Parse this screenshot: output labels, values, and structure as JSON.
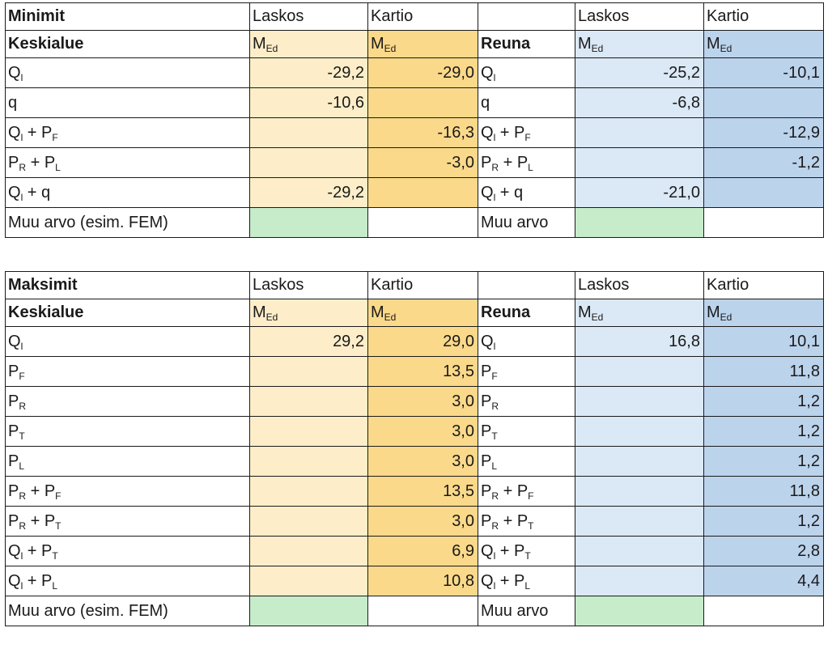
{
  "minimit": {
    "title": "Minimit",
    "section_center": "Keskialue",
    "section_edge": "Reuna",
    "col_laskos": "Laskos",
    "col_kartio": "Kartio",
    "med": {
      "base": "M",
      "sub": "Ed"
    },
    "rows": [
      {
        "l": {
          "b": "Q",
          "s": "l",
          "b2": "",
          "s2": ""
        },
        "cl": "-29,2",
        "ck": "-29,0",
        "r": {
          "b": "Q",
          "s": "l",
          "b2": "",
          "s2": ""
        },
        "el": "-25,2",
        "ek": "-10,1"
      },
      {
        "l": {
          "b": "q",
          "s": "",
          "b2": "",
          "s2": ""
        },
        "cl": "-10,6",
        "ck": "",
        "r": {
          "b": "q",
          "s": "",
          "b2": "",
          "s2": ""
        },
        "el": "-6,8",
        "ek": ""
      },
      {
        "l": {
          "b": "Q",
          "s": "l",
          "b2": "P",
          "s2": "F"
        },
        "cl": "",
        "ck": "-16,3",
        "r": {
          "b": "Q",
          "s": "l",
          "b2": "P",
          "s2": "F"
        },
        "el": "",
        "ek": "-12,9"
      },
      {
        "l": {
          "b": "P",
          "s": "R",
          "b2": "P",
          "s2": "L"
        },
        "cl": "",
        "ck": "-3,0",
        "r": {
          "b": "P",
          "s": "R",
          "b2": "P",
          "s2": "L"
        },
        "el": "",
        "ek": "-1,2"
      },
      {
        "l": {
          "b": "Q",
          "s": "l",
          "b2": "q",
          "s2": ""
        },
        "cl": "-29,2",
        "ck": "",
        "r": {
          "b": "Q",
          "s": "l",
          "b2": "q",
          "s2": ""
        },
        "el": "-21,0",
        "ek": ""
      }
    ],
    "other_center": "Muu arvo (esim. FEM)",
    "other_edge": "Muu arvo"
  },
  "maksimit": {
    "title": "Maksimit",
    "section_center": "Keskialue",
    "section_edge": "Reuna",
    "col_laskos": "Laskos",
    "col_kartio": "Kartio",
    "med": {
      "base": "M",
      "sub": "Ed"
    },
    "rows": [
      {
        "l": {
          "b": "Q",
          "s": "l",
          "b2": "",
          "s2": ""
        },
        "cl": "29,2",
        "ck": "29,0",
        "r": {
          "b": "Q",
          "s": "l",
          "b2": "",
          "s2": ""
        },
        "el": "16,8",
        "ek": "10,1"
      },
      {
        "l": {
          "b": "P",
          "s": "F",
          "b2": "",
          "s2": ""
        },
        "cl": "",
        "ck": "13,5",
        "r": {
          "b": "P",
          "s": "F",
          "b2": "",
          "s2": ""
        },
        "el": "",
        "ek": "11,8"
      },
      {
        "l": {
          "b": "P",
          "s": "R",
          "b2": "",
          "s2": ""
        },
        "cl": "",
        "ck": "3,0",
        "r": {
          "b": "P",
          "s": "R",
          "b2": "",
          "s2": ""
        },
        "el": "",
        "ek": "1,2"
      },
      {
        "l": {
          "b": "P",
          "s": "T",
          "b2": "",
          "s2": ""
        },
        "cl": "",
        "ck": "3,0",
        "r": {
          "b": "P",
          "s": "T",
          "b2": "",
          "s2": ""
        },
        "el": "",
        "ek": "1,2"
      },
      {
        "l": {
          "b": "P",
          "s": "L",
          "b2": "",
          "s2": ""
        },
        "cl": "",
        "ck": "3,0",
        "r": {
          "b": "P",
          "s": "L",
          "b2": "",
          "s2": ""
        },
        "el": "",
        "ek": "1,2"
      },
      {
        "l": {
          "b": "P",
          "s": "R",
          "b2": "P",
          "s2": "F"
        },
        "cl": "",
        "ck": "13,5",
        "r": {
          "b": "P",
          "s": "R",
          "b2": "P",
          "s2": "F"
        },
        "el": "",
        "ek": "11,8"
      },
      {
        "l": {
          "b": "P",
          "s": "R",
          "b2": "P",
          "s2": "T"
        },
        "cl": "",
        "ck": "3,0",
        "r": {
          "b": "P",
          "s": "R",
          "b2": "P",
          "s2": "T"
        },
        "el": "",
        "ek": "1,2"
      },
      {
        "l": {
          "b": "Q",
          "s": "l",
          "b2": "P",
          "s2": "T"
        },
        "cl": "",
        "ck": "6,9",
        "r": {
          "b": "Q",
          "s": "l",
          "b2": "P",
          "s2": "T"
        },
        "el": "",
        "ek": "2,8"
      },
      {
        "l": {
          "b": "Q",
          "s": "l",
          "b2": "P",
          "s2": "L"
        },
        "cl": "",
        "ck": "10,8",
        "r": {
          "b": "Q",
          "s": "l",
          "b2": "P",
          "s2": "L"
        },
        "el": "",
        "ek": "4,4"
      }
    ],
    "other_center": "Muu arvo (esim. FEM)",
    "other_edge": "Muu arvo"
  },
  "colors": {
    "laskos_center": "#fdeec9",
    "kartio_center": "#fad98a",
    "laskos_edge": "#dbe8f5",
    "kartio_edge": "#bcd3ec",
    "input": "#c6ecca"
  }
}
